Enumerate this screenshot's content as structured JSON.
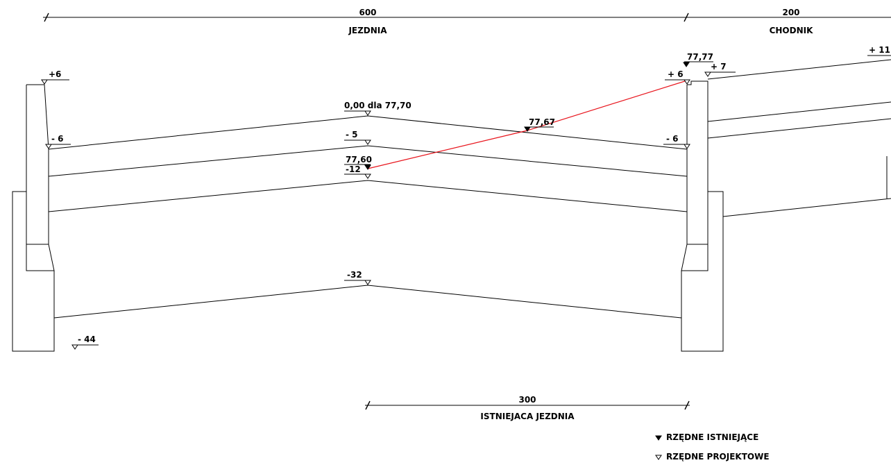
{
  "dimensions": {
    "jezdnia": {
      "value": "600",
      "label": "JEZDNIA"
    },
    "chodnik": {
      "value": "200",
      "label": "CHODNIK"
    },
    "istniejaca": {
      "value": "300",
      "label": "ISTNIEJACA JEZDNIA"
    }
  },
  "levels": {
    "left_curb_top": "+6",
    "left_edge": "- 6",
    "left_bottom": "- 44",
    "axis_top": "0,00 dla 77,70",
    "axis_layer1": "- 5",
    "axis_existing": "77,60",
    "axis_layer2": "-12",
    "axis_bottom": "-32",
    "right_existing_top": "77,77",
    "right_curb_top": "+ 6",
    "right_sidewalk_start": "+ 7",
    "right_sidewalk_end": "+ 11",
    "right_edge": "- 6",
    "existing_mid": "77,67"
  },
  "legend": {
    "existing": "RZĘDNE ISTNIEJĄCE",
    "design": "RZĘDNE PROJEKTOWE"
  }
}
